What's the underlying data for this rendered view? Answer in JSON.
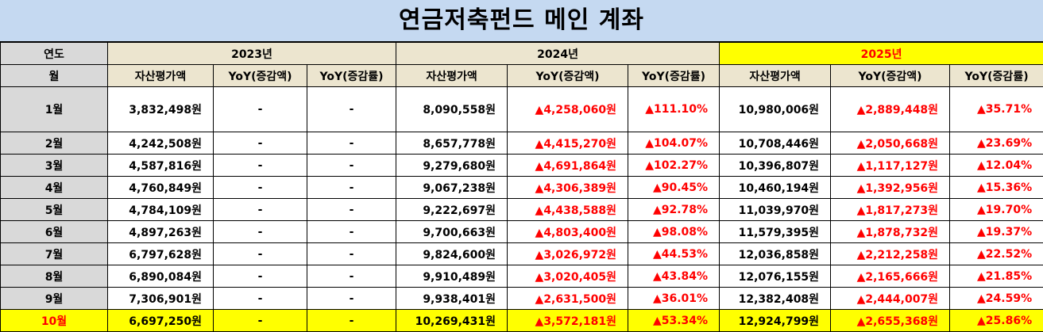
{
  "title": "연금저축펀드 메인 계좌",
  "header": {
    "year_label": "연도",
    "month_label": "월",
    "years": [
      "2023년",
      "2024년",
      "2025년"
    ],
    "sub": [
      "자산평가액",
      "YoY(증감액)",
      "YoY(증감률)"
    ]
  },
  "highlight_color": "#ffff00",
  "up_color": "#ff0000",
  "rows": [
    {
      "m": "1월",
      "a23": "3,832,498원",
      "d23": "-",
      "r23": "-",
      "a24": "8,090,558원",
      "d24": "▲4,258,060원",
      "r24": "▲111.10%",
      "a25": "10,980,006원",
      "d25": "▲2,889,448원",
      "r25": "▲35.71%"
    },
    {
      "m": "2월",
      "a23": "4,242,508원",
      "d23": "-",
      "r23": "-",
      "a24": "8,657,778원",
      "d24": "▲4,415,270원",
      "r24": "▲104.07%",
      "a25": "10,708,446원",
      "d25": "▲2,050,668원",
      "r25": "▲23.69%"
    },
    {
      "m": "3월",
      "a23": "4,587,816원",
      "d23": "-",
      "r23": "-",
      "a24": "9,279,680원",
      "d24": "▲4,691,864원",
      "r24": "▲102.27%",
      "a25": "10,396,807원",
      "d25": "▲1,117,127원",
      "r25": "▲12.04%"
    },
    {
      "m": "4월",
      "a23": "4,760,849원",
      "d23": "-",
      "r23": "-",
      "a24": "9,067,238원",
      "d24": "▲4,306,389원",
      "r24": "▲90.45%",
      "a25": "10,460,194원",
      "d25": "▲1,392,956원",
      "r25": "▲15.36%"
    },
    {
      "m": "5월",
      "a23": "4,784,109원",
      "d23": "-",
      "r23": "-",
      "a24": "9,222,697원",
      "d24": "▲4,438,588원",
      "r24": "▲92.78%",
      "a25": "11,039,970원",
      "d25": "▲1,817,273원",
      "r25": "▲19.70%"
    },
    {
      "m": "6월",
      "a23": "4,897,263원",
      "d23": "-",
      "r23": "-",
      "a24": "9,700,663원",
      "d24": "▲4,803,400원",
      "r24": "▲98.08%",
      "a25": "11,579,395원",
      "d25": "▲1,878,732원",
      "r25": "▲19.37%"
    },
    {
      "m": "7월",
      "a23": "6,797,628원",
      "d23": "-",
      "r23": "-",
      "a24": "9,824,600원",
      "d24": "▲3,026,972원",
      "r24": "▲44.53%",
      "a25": "12,036,858원",
      "d25": "▲2,212,258원",
      "r25": "▲22.52%"
    },
    {
      "m": "8월",
      "a23": "6,890,084원",
      "d23": "-",
      "r23": "-",
      "a24": "9,910,489원",
      "d24": "▲3,020,405원",
      "r24": "▲43.84%",
      "a25": "12,076,155원",
      "d25": "▲2,165,666원",
      "r25": "▲21.85%"
    },
    {
      "m": "9월",
      "a23": "7,306,901원",
      "d23": "-",
      "r23": "-",
      "a24": "9,938,401원",
      "d24": "▲2,631,500원",
      "r24": "▲36.01%",
      "a25": "12,382,408원",
      "d25": "▲2,444,007원",
      "r25": "▲24.59%"
    },
    {
      "m": "10월",
      "a23": "6,697,250원",
      "d23": "-",
      "r23": "-",
      "a24": "10,269,431원",
      "d24": "▲3,572,181원",
      "r24": "▲53.34%",
      "a25": "12,924,799원",
      "d25": "▲2,655,368원",
      "r25": "▲25.86%"
    }
  ]
}
